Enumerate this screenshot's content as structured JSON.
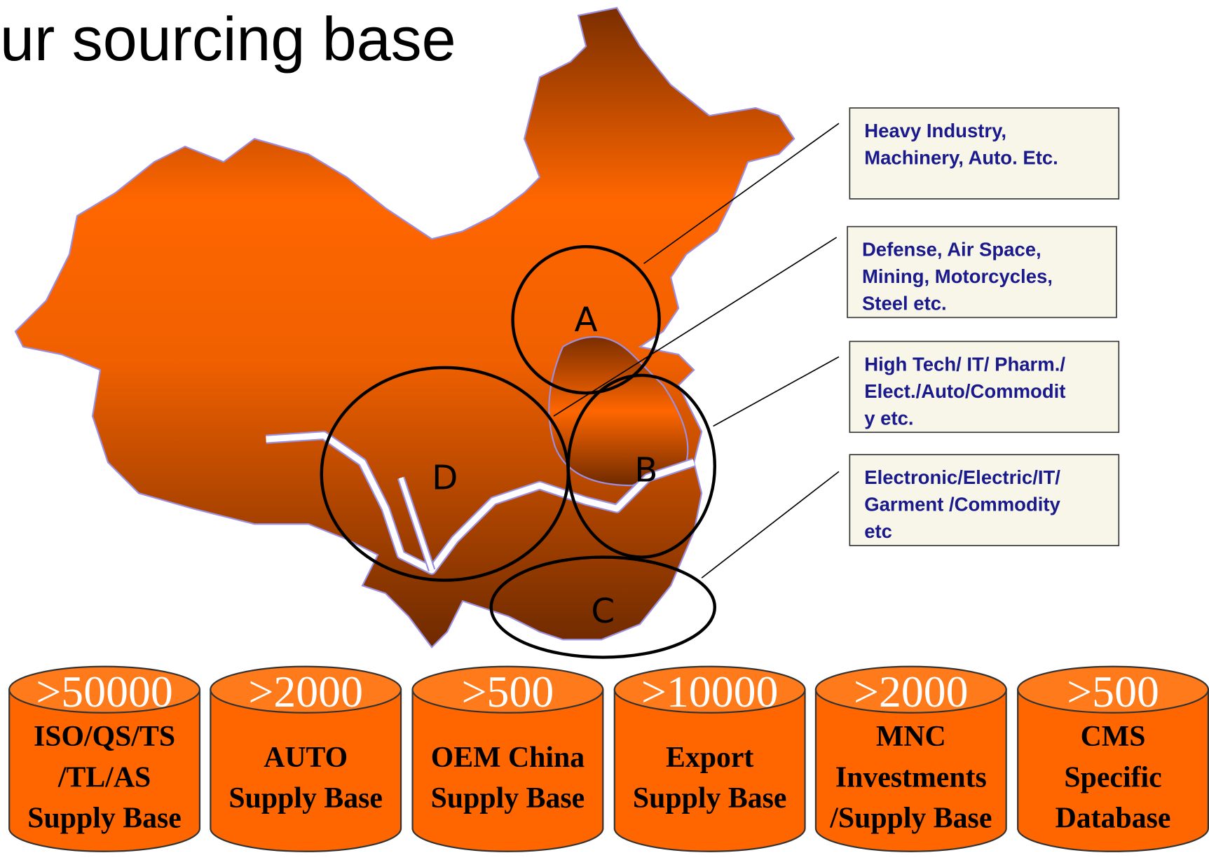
{
  "title": "ur sourcing base",
  "regions": [
    "A",
    "B",
    "C",
    "D"
  ],
  "callouts": [
    {
      "lines": [
        "Heavy Industry,",
        "Machinery, Auto. Etc."
      ]
    },
    {
      "lines": [
        "Defense, Air Space,",
        "Mining, Motorcycles,",
        "Steel  etc."
      ]
    },
    {
      "lines": [
        "High Tech/ IT/ Pharm./",
        "Elect./Auto/Commodit",
        "y etc."
      ]
    },
    {
      "lines": [
        "Electronic/Electric/IT/",
        "Garment /Commodity",
        "etc"
      ]
    }
  ],
  "databases": [
    {
      "count": ">50000",
      "lines": [
        "ISO/QS/TS",
        "/TL/AS",
        "Supply Base"
      ]
    },
    {
      "count": ">2000",
      "lines": [
        "AUTO",
        "Supply Base"
      ]
    },
    {
      "count": ">500",
      "lines": [
        "OEM China",
        "Supply Base"
      ]
    },
    {
      "count": ">10000",
      "lines": [
        "Export",
        "Supply Base"
      ]
    },
    {
      "count": ">2000",
      "lines": [
        "MNC",
        "Investments",
        "/Supply Base"
      ]
    },
    {
      "count": ">500",
      "lines": [
        "CMS",
        "Specific",
        "Database"
      ]
    }
  ]
}
